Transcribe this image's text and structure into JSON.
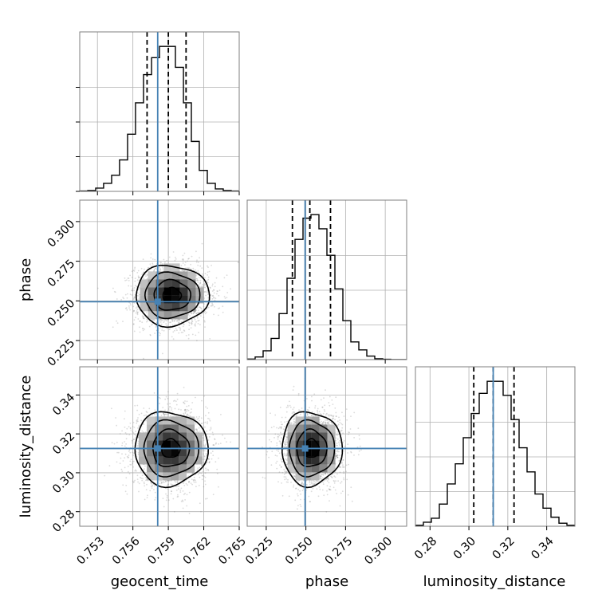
{
  "chart_data": {
    "type": "corner",
    "parameters": [
      "geocent_time",
      "phase",
      "luminosity_distance"
    ],
    "labels": {
      "geocent_time": "geocent_time",
      "phase": "phase",
      "luminosity_distance": "luminosity_distance"
    },
    "ranges": {
      "geocent_time": [
        0.7515,
        0.765
      ],
      "phase": [
        0.213,
        0.3135
      ],
      "luminosity_distance": [
        0.2725,
        0.3545
      ]
    },
    "ticks": {
      "geocent_time": [
        0.753,
        0.756,
        0.759,
        0.762,
        0.765
      ],
      "phase": [
        0.225,
        0.25,
        0.275,
        0.3
      ],
      "luminosity_distance": [
        0.28,
        0.3,
        0.32,
        0.34
      ]
    },
    "tick_labels": {
      "geocent_time": [
        "0.753",
        "0.756",
        "0.759",
        "0.762",
        "0.765"
      ],
      "phase": [
        "0.225",
        "0.250",
        "0.275",
        "0.300"
      ],
      "luminosity_distance": [
        "0.28",
        "0.30",
        "0.32",
        "0.34"
      ]
    },
    "truths": {
      "geocent_time": 0.7581,
      "phase": 0.2495,
      "luminosity_distance": 0.3125
    },
    "quantiles": {
      "geocent_time": [
        0.7572,
        0.759,
        0.7605
      ],
      "phase": [
        0.2415,
        0.2525,
        0.2655
      ],
      "luminosity_distance": [
        0.3025,
        0.3125,
        0.3232
      ]
    },
    "medians_2d": {
      "geocent_time": 0.7592,
      "phase": 0.2535,
      "luminosity_distance": 0.3125
    },
    "histograms": {
      "geocent_time": {
        "edges": [
          0.7515,
          0.75218,
          0.75285,
          0.75352,
          0.7542,
          0.75487,
          0.75555,
          0.75622,
          0.7569,
          0.75758,
          0.75825,
          0.75892,
          0.7596,
          0.76028,
          0.76095,
          0.76162,
          0.7623,
          0.76298,
          0.76365,
          0.76432,
          0.765
        ],
        "counts": [
          0.2,
          0.5,
          2.0,
          5.0,
          10.0,
          19.5,
          35.5,
          55.0,
          72.5,
          83.0,
          90.0,
          90.0,
          77.0,
          55.0,
          31.0,
          13.0,
          5.0,
          1.5,
          0.5,
          0.2
        ]
      },
      "phase": {
        "edges": [
          0.213,
          0.21802,
          0.22305,
          0.22808,
          0.2331,
          0.23812,
          0.24315,
          0.24818,
          0.2532,
          0.25822,
          0.26325,
          0.26828,
          0.2733,
          0.27832,
          0.28335,
          0.28838,
          0.2934,
          0.29842,
          0.30345,
          0.30848,
          0.3135
        ],
        "counts": [
          0.3,
          1.5,
          5.0,
          12.0,
          26.0,
          46.0,
          68.0,
          80.0,
          82.0,
          74.0,
          59.0,
          40.0,
          22.0,
          10.0,
          5.5,
          2.0,
          0.5,
          0.2,
          0.0,
          0.0
        ]
      },
      "luminosity_distance": {
        "edges": [
          0.2725,
          0.2766,
          0.2807,
          0.2848,
          0.2889,
          0.293,
          0.2971,
          0.3012,
          0.3053,
          0.3094,
          0.3135,
          0.3176,
          0.3217,
          0.3258,
          0.3299,
          0.334,
          0.3381,
          0.3422,
          0.3463,
          0.3504,
          0.3545
        ],
        "counts": [
          0.5,
          2.0,
          4.0,
          11.0,
          21.0,
          31.0,
          44.0,
          56.0,
          66.0,
          72.0,
          72.0,
          65.0,
          53.0,
          39.0,
          27.0,
          16.0,
          9.0,
          4.5,
          1.5,
          0.5
        ]
      }
    },
    "pairs": [
      {
        "x": "geocent_time",
        "y": "phase",
        "center": [
          0.7593,
          0.2535
        ],
        "sd": [
          0.00155,
          0.0095
        ]
      },
      {
        "x": "geocent_time",
        "y": "luminosity_distance",
        "center": [
          0.7592,
          0.3125
        ],
        "sd": [
          0.00155,
          0.0095
        ]
      },
      {
        "x": "phase",
        "y": "luminosity_distance",
        "center": [
          0.2535,
          0.3125
        ],
        "sd": [
          0.0095,
          0.0095
        ]
      }
    ],
    "contour_levels": [
      0.5,
      1.0,
      1.5,
      2.0
    ],
    "grid": true,
    "colors": {
      "truth": "#4682b4",
      "hist": "#000000",
      "grid": "#b0b0b0",
      "points": "#7f7f7f",
      "axes": "#7f7f7f"
    }
  }
}
